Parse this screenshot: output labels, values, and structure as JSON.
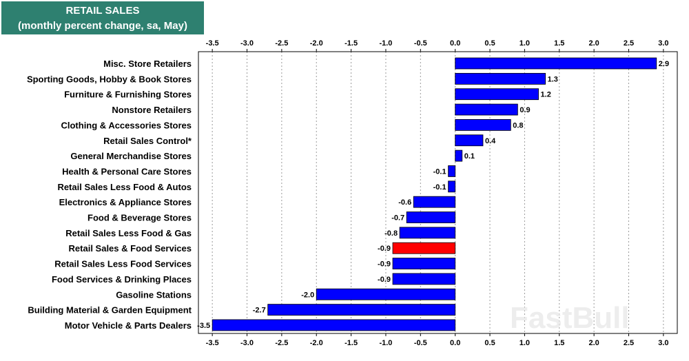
{
  "chart_data": {
    "type": "bar",
    "orientation": "horizontal",
    "title": "RETAIL SALES",
    "subtitle": "(monthly percent change, sa,  May)",
    "categories": [
      "Misc. Store Retailers",
      "Sporting Goods, Hobby & Book Stores",
      "Furniture & Furnishing Stores",
      "Nonstore Retailers",
      "Clothing & Accessories Stores",
      "Retail Sales Control*",
      "General Merchandise Stores",
      "Health & Personal Care Stores",
      "Retail Sales Less Food & Autos",
      "Electronics & Appliance Stores",
      "Food & Beverage Stores",
      "Retail Sales Less Food & Gas",
      "Retail Sales & Food Services",
      "Retail Sales Less Food Services",
      "Food Services & Drinking Places",
      "Gasoline Stations",
      "Building Material & Garden Equipment",
      "Motor Vehicle & Parts Dealers"
    ],
    "values": [
      2.9,
      1.3,
      1.2,
      0.9,
      0.8,
      0.4,
      0.1,
      -0.1,
      -0.1,
      -0.6,
      -0.7,
      -0.8,
      -0.9,
      -0.9,
      -0.9,
      -2.0,
      -2.7,
      -3.5
    ],
    "value_labels": [
      "2.9",
      "1.3",
      "1.2",
      "0.9",
      "0.8",
      "0.4",
      "0.1",
      "-0.1",
      "-0.1",
      "-0.6",
      "-0.7",
      "-0.8",
      "-0.9",
      "-0.9",
      "-0.9",
      "-2.0",
      "-2.7",
      "-3.5"
    ],
    "highlight_category": "Retail Sales & Food Services",
    "xlim": [
      -3.7,
      3.2
    ],
    "ticks": [
      -3.5,
      -3.0,
      -2.5,
      -2.0,
      -1.5,
      -1.0,
      -0.5,
      0.0,
      0.5,
      1.0,
      1.5,
      2.0,
      2.5,
      3.0
    ],
    "tick_labels": [
      "-3.5",
      "-3.0",
      "-2.5",
      "-2.0",
      "-1.5",
      "-1.0",
      "-0.5",
      "0.0",
      "0.5",
      "1.0",
      "1.5",
      "2.0",
      "2.5",
      "3.0"
    ],
    "axis_position": [
      "top",
      "bottom"
    ],
    "grid": true,
    "colors": {
      "bar": "#0000ff",
      "highlight": "#ff0000",
      "title_bg": "#2e8070",
      "grid": "#999999"
    }
  },
  "watermark": "FastBull"
}
